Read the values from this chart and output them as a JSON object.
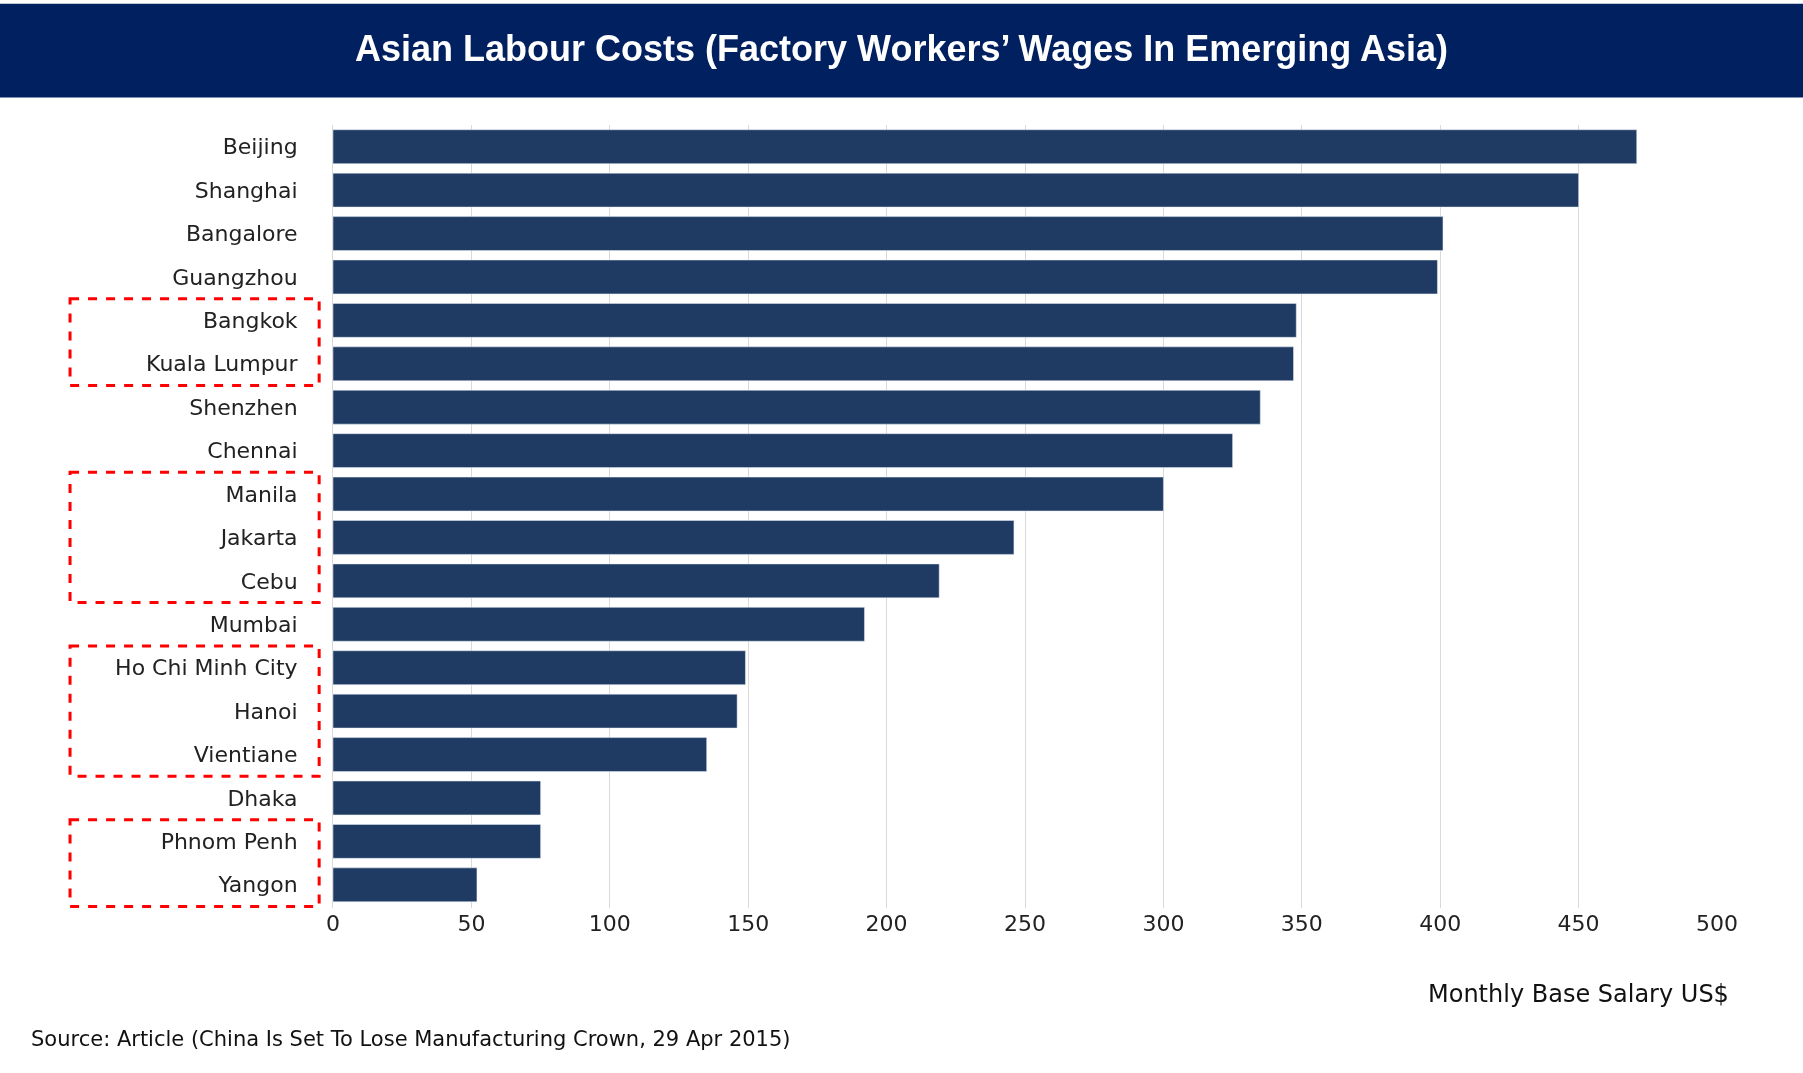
{
  "chart_data": {
    "type": "bar",
    "orientation": "horizontal",
    "title": "Asian Labour Costs (Factory Workers’ Wages In Emerging Asia)",
    "xlabel": "Monthly Base Salary US$",
    "categories": [
      "Beijing",
      "Shanghai",
      "Bangalore",
      "Guangzhou",
      "Bangkok",
      "Kuala Lumpur",
      "Shenzhen",
      "Chennai",
      "Manila",
      "Jakarta",
      "Cebu",
      "Mumbai",
      "Ho Chi Minh City",
      "Hanoi",
      "Vientiane",
      "Dhaka",
      "Phnom Penh",
      "Yangon"
    ],
    "values": [
      471,
      450,
      401,
      399,
      348,
      347,
      335,
      325,
      300,
      246,
      219,
      192,
      149,
      146,
      135,
      75,
      75,
      52
    ],
    "color": "#1f3b63",
    "xlim": [
      0,
      500
    ],
    "xticks": [
      0,
      50,
      100,
      150,
      200,
      250,
      300,
      350,
      400,
      450,
      500
    ],
    "grid": "x",
    "annotations": [
      "Source: Article (China Is Set To Lose Manufacturing Crown, 29 Apr 2015)"
    ]
  }
}
